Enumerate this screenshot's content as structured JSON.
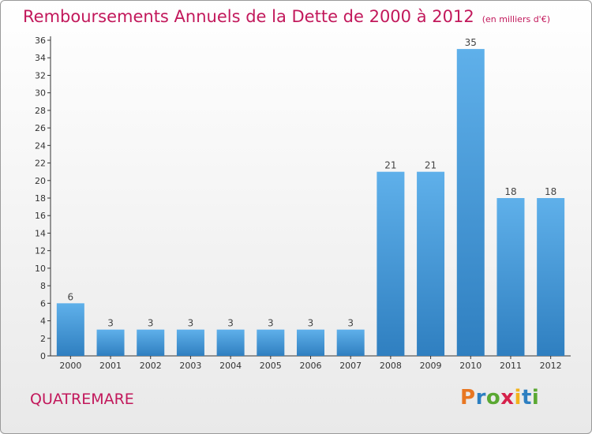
{
  "title": "Remboursements Annuels de la Dette de 2000 à 2012",
  "subtitle": "(en milliers d'€)",
  "town": "QUATREMARE",
  "logo": {
    "letters": [
      "P",
      "r",
      "o",
      "x",
      "i",
      "t",
      "i"
    ],
    "colors": [
      "#e87722",
      "#2d7fc1",
      "#5aa832",
      "#d6214b",
      "#f3b21b",
      "#2d7fc1",
      "#5aa832"
    ]
  },
  "colors": {
    "title": "#c2185b",
    "bar_top": "#5fb0ea",
    "bar_bottom": "#2f7fc0",
    "axis": "#333333"
  },
  "chart_data": {
    "type": "bar",
    "title": "Remboursements Annuels de la Dette de 2000 à 2012",
    "subtitle": "(en milliers d'€)",
    "categories": [
      "2000",
      "2001",
      "2002",
      "2003",
      "2004",
      "2005",
      "2006",
      "2007",
      "2008",
      "2009",
      "2010",
      "2011",
      "2012"
    ],
    "values": [
      6,
      3,
      3,
      3,
      3,
      3,
      3,
      3,
      21,
      21,
      35,
      18,
      18
    ],
    "ylim": [
      0,
      36
    ],
    "yticks": [
      0,
      2,
      4,
      6,
      8,
      10,
      12,
      14,
      16,
      18,
      20,
      22,
      24,
      26,
      28,
      30,
      32,
      34,
      36
    ],
    "grid": false,
    "data_labels": true
  }
}
